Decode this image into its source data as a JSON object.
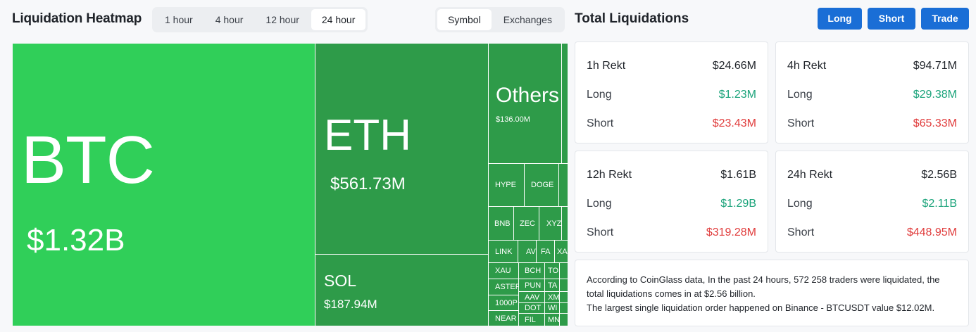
{
  "header": {
    "title": "Liquidation Heatmap",
    "time_options": [
      "1 hour",
      "4 hour",
      "12 hour",
      "24 hour"
    ],
    "time_selected": "24 hour",
    "view_options": [
      "Symbol",
      "Exchanges"
    ],
    "view_selected": "Symbol"
  },
  "totals": {
    "title": "Total Liquidations",
    "buttons": {
      "long": "Long",
      "short": "Short",
      "trade": "Trade"
    },
    "accent_color": "#1a6ed6",
    "long_color": "#1aa37a",
    "short_color": "#e03b3b",
    "cards": [
      {
        "label": "1h Rekt",
        "total": "$24.66M",
        "long_label": "Long",
        "long": "$1.23M",
        "short_label": "Short",
        "short": "$23.43M"
      },
      {
        "label": "4h Rekt",
        "total": "$94.71M",
        "long_label": "Long",
        "long": "$29.38M",
        "short_label": "Short",
        "short": "$65.33M"
      },
      {
        "label": "12h Rekt",
        "total": "$1.61B",
        "long_label": "Long",
        "long": "$1.29B",
        "short_label": "Short",
        "short": "$319.28M"
      },
      {
        "label": "24h Rekt",
        "total": "$2.56B",
        "long_label": "Long",
        "long": "$2.11B",
        "short_label": "Short",
        "short": "$448.95M"
      }
    ],
    "note": [
      "According to CoinGlass data, In the past 24 hours, 572 258 traders were liquidated, the total liquidations comes in at $2.56 billion.",
      "The largest single liquidation order happened on Binance - BTCUSDT value $12.02M."
    ]
  },
  "treemap": {
    "tile_color_large": "#30cf59",
    "tile_color_mid": "#2e9b49",
    "tiles": [
      {
        "symbol": "BTC",
        "value": "$1.32B"
      },
      {
        "symbol": "ETH",
        "value": "$561.73M"
      },
      {
        "symbol": "SOL",
        "value": "$187.94M"
      },
      {
        "symbol": "Others",
        "value": "$136.00M"
      },
      {
        "symbol": "HYPE"
      },
      {
        "symbol": "DOGE"
      },
      {
        "symbol": "BNB"
      },
      {
        "symbol": "ZEC"
      },
      {
        "symbol": "XYZ"
      },
      {
        "symbol": "LINK"
      },
      {
        "symbol": "AV"
      },
      {
        "symbol": "FA"
      },
      {
        "symbol": "XA"
      },
      {
        "symbol": "XAU"
      },
      {
        "symbol": "BCH"
      },
      {
        "symbol": "TO"
      },
      {
        "symbol": "ASTER"
      },
      {
        "symbol": "PUN"
      },
      {
        "symbol": "TA"
      },
      {
        "symbol": "1000P"
      },
      {
        "symbol": "AAV"
      },
      {
        "symbol": "XM"
      },
      {
        "symbol": "DOT"
      },
      {
        "symbol": "WI"
      },
      {
        "symbol": "NEAR"
      },
      {
        "symbol": "FIL"
      },
      {
        "symbol": "MN"
      }
    ]
  }
}
